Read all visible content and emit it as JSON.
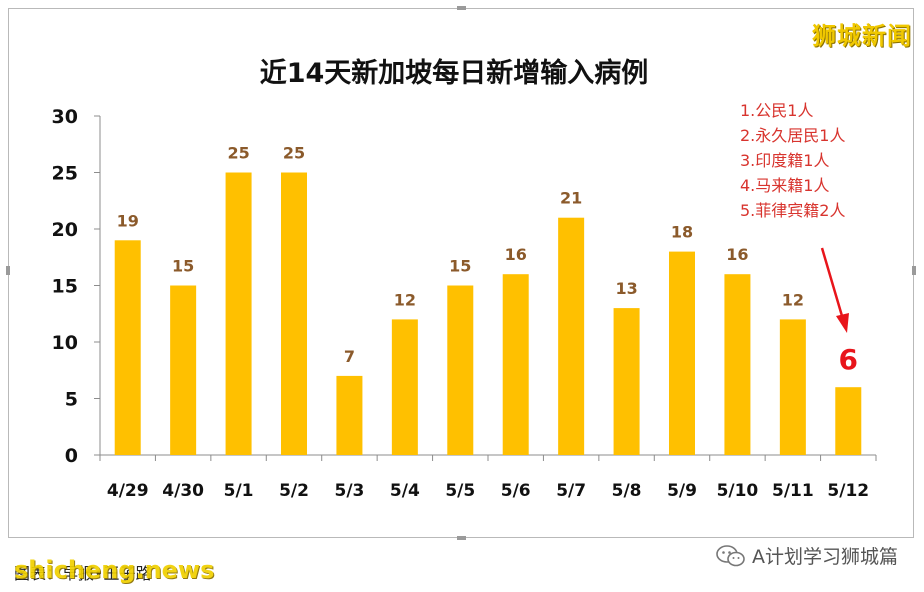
{
  "watermark_top": "狮城新闻",
  "annotation": [
    "1.公民1人",
    "2.永久居民1人",
    "3.印度籍1人",
    "4.马来籍1人",
    "5.菲律宾籍2人"
  ],
  "footer": {
    "source": "图表：早报•王子路",
    "brand": "shicheng.news",
    "wechat_label": "A计划学习狮城篇"
  },
  "colors": {
    "bar": "#FFC000",
    "value_label": "#8B5A2B",
    "highlight": "#E8151B",
    "annotation": "#D8342E"
  },
  "chart_data": {
    "type": "bar",
    "title": "近14天新加坡每日新增输入病例",
    "xlabel": "",
    "ylabel": "",
    "categories": [
      "4/29",
      "4/30",
      "5/1",
      "5/2",
      "5/3",
      "5/4",
      "5/5",
      "5/6",
      "5/7",
      "5/8",
      "5/9",
      "5/10",
      "5/11",
      "5/12"
    ],
    "values": [
      19,
      15,
      25,
      25,
      7,
      12,
      15,
      16,
      21,
      13,
      18,
      16,
      12,
      6
    ],
    "ylim": [
      0,
      30
    ],
    "yticks": [
      0,
      5,
      10,
      15,
      20,
      25,
      30
    ],
    "grid": false,
    "highlight_index": 13
  }
}
